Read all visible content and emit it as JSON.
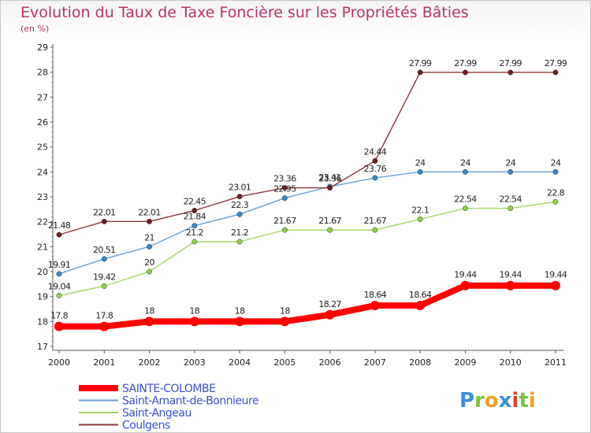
{
  "chart_data": {
    "type": "line",
    "title": "Evolution du Taux de Taxe Foncière sur les Propriétés Bâties",
    "subtitle": "(en %)",
    "categories": [
      "2000",
      "2001",
      "2002",
      "2003",
      "2004",
      "2005",
      "2006",
      "2007",
      "2008",
      "2009",
      "2010",
      "2011"
    ],
    "ylim": [
      17,
      29
    ],
    "yticks": [
      17,
      18,
      19,
      20,
      21,
      22,
      23,
      24,
      25,
      26,
      27,
      28,
      29
    ],
    "grid": false,
    "legend_position": "bottom-left",
    "series": [
      {
        "name": "SAINTE-COLOMBE",
        "color": "#ff0000",
        "dot": "#ff0000",
        "width": 8,
        "radius": 6,
        "values": [
          17.8,
          17.8,
          18,
          18,
          18,
          18,
          18.27,
          18.64,
          18.64,
          19.44,
          19.44,
          19.44
        ],
        "labels": [
          "17.8",
          "17.8",
          "18",
          "18",
          "18",
          "18",
          "18.27",
          "18.64",
          "18.64",
          "19.44",
          "19.44",
          "19.44"
        ]
      },
      {
        "name": "Saint-Amant-de-Bonnieure",
        "color": "#6aa0d4",
        "dot": "#3a86cc",
        "width": 1.4,
        "radius": 3.2,
        "values": [
          19.91,
          20.51,
          21,
          21.84,
          22.3,
          22.95,
          23.41,
          23.76,
          24,
          24,
          24,
          24
        ],
        "labels": [
          "19.91",
          "20.51",
          "21",
          "21.84",
          "22.3",
          "22.95",
          "23.41",
          "23.76",
          "24",
          "24",
          "24",
          "24"
        ]
      },
      {
        "name": "Saint-Angeau",
        "color": "#a6d86a",
        "dot": "#8ed04a",
        "width": 1.4,
        "radius": 3.2,
        "values": [
          19.04,
          19.42,
          20,
          21.2,
          21.2,
          21.67,
          21.67,
          21.67,
          22.1,
          22.54,
          22.54,
          22.8
        ],
        "labels": [
          "19.04",
          "19.42",
          "20",
          "21.2",
          "21.2",
          "21.67",
          "21.67",
          "21.67",
          "22.1",
          "22.54",
          "22.54",
          "22.8"
        ]
      },
      {
        "name": "Coulgens",
        "color": "#8b3a3a",
        "dot": "#6b1f1f",
        "width": 1.4,
        "radius": 3.2,
        "values": [
          21.48,
          22.01,
          22.01,
          22.45,
          23.01,
          23.36,
          23.36,
          24.44,
          27.99,
          27.99,
          27.99,
          27.99
        ],
        "labels": [
          "21.48",
          "22.01",
          "22.01",
          "22.45",
          "23.01",
          "23.36",
          "23.36",
          "24.44",
          "27.99",
          "27.99",
          "27.99",
          "27.99"
        ]
      }
    ]
  },
  "legend_color": "#3b4fd8",
  "logo": {
    "letters": [
      "P",
      "r",
      "o",
      "x",
      "i",
      "t",
      "i"
    ],
    "colors": [
      "#3a8fd8",
      "#7cc242",
      "#f0a020",
      "#3a8fd8",
      "#e8402a",
      "#7cc242",
      "#f0a020"
    ]
  }
}
